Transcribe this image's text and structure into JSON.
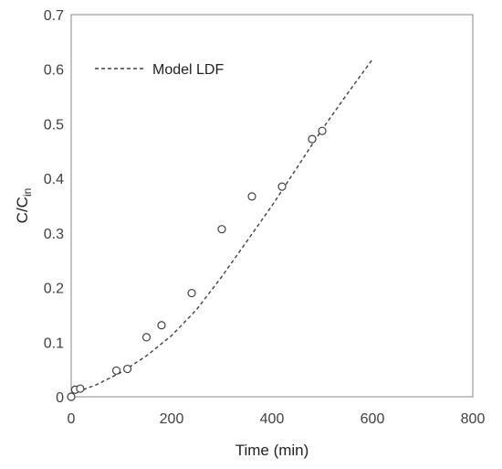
{
  "chart_data": {
    "type": "scatter",
    "xlabel": "Time (min)",
    "ylabel_main": "C/C",
    "ylabel_sub": "in",
    "xlim": [
      0,
      800
    ],
    "ylim": [
      0,
      0.7
    ],
    "x_ticks": [
      0,
      200,
      400,
      600,
      800
    ],
    "y_ticks": [
      0,
      0.1,
      0.2,
      0.3,
      0.4,
      0.5,
      0.6,
      0.7
    ],
    "x_tick_labels": [
      "0",
      "200",
      "400",
      "600",
      "800"
    ],
    "y_tick_labels": [
      "0",
      "0.1",
      "0.2",
      "0.3",
      "0.4",
      "0.5",
      "0.6",
      "0.7"
    ],
    "grid": false,
    "legend_position": "top-left",
    "series": [
      {
        "kind": "scatter",
        "marker": "open-circle",
        "x": [
          0,
          8,
          18,
          90,
          112,
          150,
          180,
          240,
          300,
          360,
          420,
          480,
          500
        ],
        "y": [
          0.0,
          0.013,
          0.015,
          0.048,
          0.051,
          0.109,
          0.131,
          0.19,
          0.307,
          0.367,
          0.385,
          0.472,
          0.487
        ]
      },
      {
        "kind": "line",
        "style": "dashed",
        "name": "Model LDF",
        "x": [
          0,
          50,
          100,
          150,
          200,
          250,
          300,
          350,
          400,
          450,
          500,
          550,
          600
        ],
        "y": [
          0.005,
          0.022,
          0.045,
          0.075,
          0.112,
          0.16,
          0.22,
          0.285,
          0.35,
          0.42,
          0.49,
          0.555,
          0.618
        ]
      }
    ],
    "colors": {
      "marker": "#404040",
      "line": "#404040",
      "axis": "#808080"
    }
  }
}
